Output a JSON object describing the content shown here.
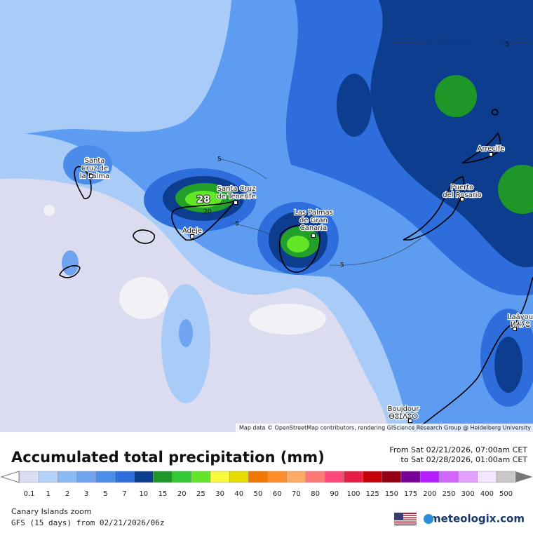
{
  "map": {
    "places": [
      {
        "lines": [
          "Santa",
          "Cruz de",
          "la Palma"
        ]
      },
      {
        "lines": [
          "Santa Cruz",
          "de Tenerife"
        ]
      },
      {
        "lines": [
          "Adeje"
        ]
      },
      {
        "lines": [
          "Las Palmas",
          "de Gran",
          "Canaria"
        ]
      },
      {
        "lines": [
          "Puerto",
          "del Rosario"
        ]
      },
      {
        "lines": [
          "Arrecife"
        ]
      },
      {
        "lines": [
          "Laâyou",
          "ⵍⵄⵢⵓ"
        ]
      },
      {
        "lines": [
          "Boujdour",
          "ⴱⵓⵊⴷⵓⵔ"
        ]
      }
    ],
    "contour_labels": [
      5,
      5,
      5,
      5,
      28,
      20
    ],
    "attribution": "Map data © OpenStreetMap contributors, rendering GIScience Research Group @ Heidelberg University"
  },
  "footer": {
    "title": "Accumulated total precipitation (mm)",
    "from": "From Sat 02/21/2026, 07:00am CET",
    "to": "to Sat 02/28/2026, 01:00am CET",
    "region": "Canary Islands zoom",
    "model": "GFS (15 days) from  02/21/2026/06z",
    "brand": "meteologix.com"
  },
  "legend": {
    "ticks": [
      0.1,
      1,
      2,
      3,
      5,
      7,
      10,
      15,
      20,
      25,
      30,
      40,
      50,
      60,
      70,
      80,
      90,
      100,
      125,
      150,
      175,
      200,
      250,
      300,
      400,
      500
    ],
    "colors": [
      "#dcdcf2",
      "#b4d2fa",
      "#8cbaf5",
      "#6ea4f0",
      "#4b8ceb",
      "#2d6edc",
      "#0c3d8f",
      "#1e9628",
      "#32c832",
      "#64e628",
      "#fafa3c",
      "#e6dc00",
      "#f07800",
      "#ff8c28",
      "#ffaa64",
      "#ff7878",
      "#ff4678",
      "#e61e46",
      "#c8000a",
      "#960014",
      "#780096",
      "#b41eff",
      "#d264ff",
      "#e6a0ff",
      "#f5e6ff",
      "#c8c8c8"
    ]
  }
}
